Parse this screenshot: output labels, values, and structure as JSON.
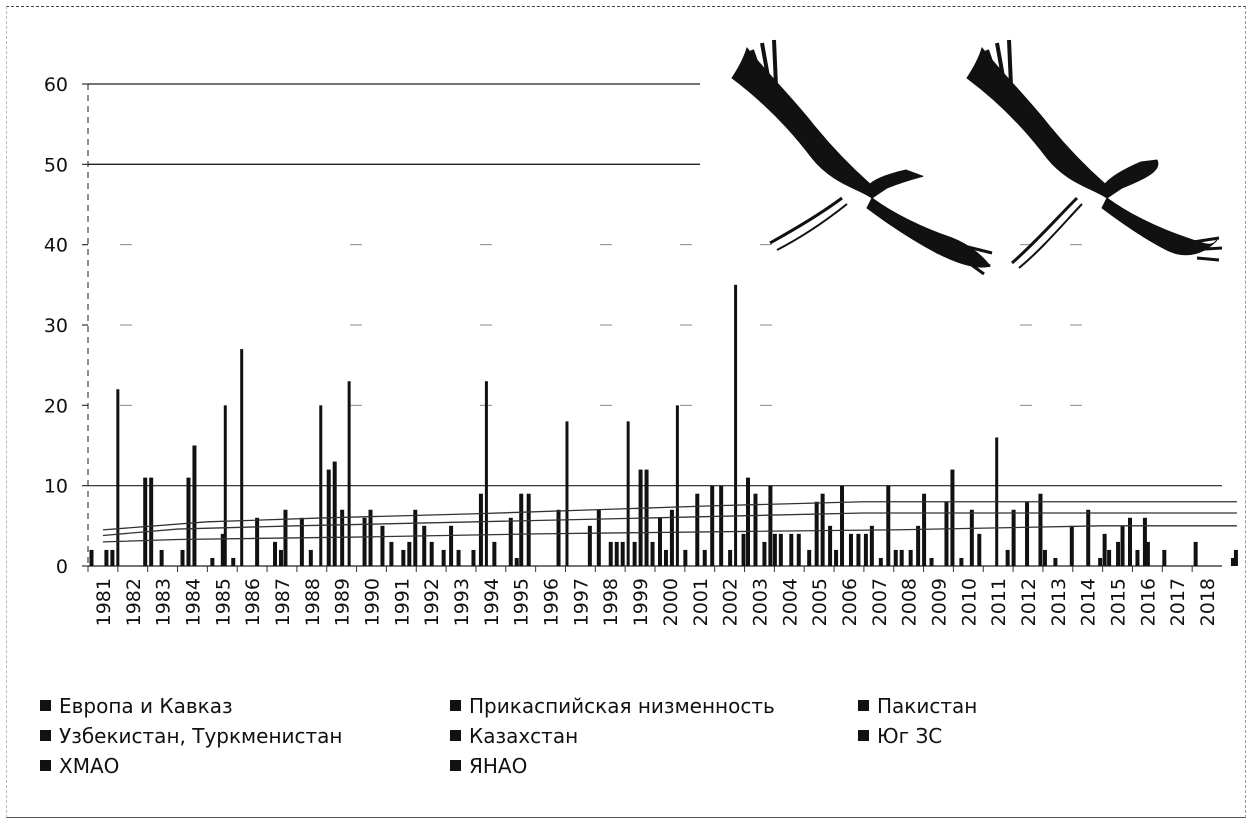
{
  "chart_data": {
    "type": "bar",
    "title": "",
    "xlabel": "",
    "ylabel": "",
    "ylim": [
      0,
      60
    ],
    "yticks": [
      0,
      10,
      20,
      30,
      40,
      50,
      60
    ],
    "grid": "horizontal",
    "legend_position": "bottom",
    "categories": [
      "1981",
      "1982",
      "1983",
      "1984",
      "1985",
      "1986",
      "1987",
      "1988",
      "1989",
      "1990",
      "1991",
      "1992",
      "1993",
      "1994",
      "1995",
      "1996",
      "1997",
      "1998",
      "1999",
      "2000",
      "2001",
      "2002",
      "2003",
      "2004",
      "2005",
      "2006",
      "2007",
      "2008",
      "2009",
      "2010",
      "2011",
      "2012",
      "2013",
      "2014",
      "2015",
      "2016",
      "2017",
      "2018"
    ],
    "series_names": [
      "Европа и Кавказ",
      "Прикаспийская низменность",
      "Пакистан",
      "Узбекистан, Туркменистан",
      "Казахстан",
      "Юг ЗС",
      "ХМАО",
      "ЯНАО"
    ],
    "observations": [
      {
        "x": 1981.05,
        "y": 2
      },
      {
        "x": 1981.55,
        "y": 2
      },
      {
        "x": 1981.75,
        "y": 2
      },
      {
        "x": 1981.95,
        "y": 22
      },
      {
        "x": 1982.85,
        "y": 11
      },
      {
        "x": 1983.05,
        "y": 11
      },
      {
        "x": 1983.4,
        "y": 2
      },
      {
        "x": 1984.1,
        "y": 2
      },
      {
        "x": 1984.3,
        "y": 11
      },
      {
        "x": 1984.5,
        "y": 15
      },
      {
        "x": 1985.1,
        "y": 1
      },
      {
        "x": 1985.45,
        "y": 4
      },
      {
        "x": 1985.55,
        "y": 20
      },
      {
        "x": 1985.8,
        "y": 1
      },
      {
        "x": 1986.1,
        "y": 27
      },
      {
        "x": 1986.6,
        "y": 6
      },
      {
        "x": 1987.2,
        "y": 3
      },
      {
        "x": 1987.4,
        "y": 2
      },
      {
        "x": 1987.55,
        "y": 7
      },
      {
        "x": 1988.1,
        "y": 6
      },
      {
        "x": 1988.4,
        "y": 2
      },
      {
        "x": 1988.75,
        "y": 20
      },
      {
        "x": 1989.0,
        "y": 12
      },
      {
        "x": 1989.2,
        "y": 13
      },
      {
        "x": 1989.45,
        "y": 7
      },
      {
        "x": 1989.7,
        "y": 23
      },
      {
        "x": 1990.2,
        "y": 6
      },
      {
        "x": 1990.4,
        "y": 7
      },
      {
        "x": 1990.8,
        "y": 5
      },
      {
        "x": 1991.1,
        "y": 3
      },
      {
        "x": 1991.5,
        "y": 2
      },
      {
        "x": 1991.7,
        "y": 3
      },
      {
        "x": 1991.9,
        "y": 7
      },
      {
        "x": 1992.2,
        "y": 5
      },
      {
        "x": 1992.45,
        "y": 3
      },
      {
        "x": 1992.85,
        "y": 2
      },
      {
        "x": 1993.1,
        "y": 5
      },
      {
        "x": 1993.35,
        "y": 2
      },
      {
        "x": 1993.85,
        "y": 2
      },
      {
        "x": 1994.1,
        "y": 9
      },
      {
        "x": 1994.3,
        "y": 23
      },
      {
        "x": 1994.55,
        "y": 3
      },
      {
        "x": 1995.1,
        "y": 6
      },
      {
        "x": 1995.3,
        "y": 1
      },
      {
        "x": 1995.45,
        "y": 9
      },
      {
        "x": 1995.7,
        "y": 9
      },
      {
        "x": 1996.7,
        "y": 7
      },
      {
        "x": 1997.0,
        "y": 18
      },
      {
        "x": 1997.75,
        "y": 5
      },
      {
        "x": 1998.05,
        "y": 7
      },
      {
        "x": 1998.45,
        "y": 3
      },
      {
        "x": 1998.65,
        "y": 3
      },
      {
        "x": 1998.85,
        "y": 3
      },
      {
        "x": 1999.05,
        "y": 18
      },
      {
        "x": 1999.25,
        "y": 3
      },
      {
        "x": 1999.45,
        "y": 12
      },
      {
        "x": 1999.65,
        "y": 12
      },
      {
        "x": 1999.85,
        "y": 3
      },
      {
        "x": 2000.1,
        "y": 6
      },
      {
        "x": 2000.3,
        "y": 2
      },
      {
        "x": 2000.5,
        "y": 7
      },
      {
        "x": 2000.7,
        "y": 20
      },
      {
        "x": 2000.95,
        "y": 2
      },
      {
        "x": 2001.35,
        "y": 9
      },
      {
        "x": 2001.6,
        "y": 2
      },
      {
        "x": 2001.85,
        "y": 10
      },
      {
        "x": 2002.15,
        "y": 10
      },
      {
        "x": 2002.45,
        "y": 2
      },
      {
        "x": 2002.65,
        "y": 35
      },
      {
        "x": 2002.9,
        "y": 4
      },
      {
        "x": 2003.05,
        "y": 11
      },
      {
        "x": 2003.3,
        "y": 9
      },
      {
        "x": 2003.6,
        "y": 3
      },
      {
        "x": 2003.8,
        "y": 10
      },
      {
        "x": 2003.95,
        "y": 4
      },
      {
        "x": 2004.15,
        "y": 4
      },
      {
        "x": 2004.5,
        "y": 4
      },
      {
        "x": 2004.75,
        "y": 4
      },
      {
        "x": 2005.1,
        "y": 2
      },
      {
        "x": 2005.35,
        "y": 8
      },
      {
        "x": 2005.55,
        "y": 9
      },
      {
        "x": 2005.8,
        "y": 5
      },
      {
        "x": 2006.0,
        "y": 2
      },
      {
        "x": 2006.2,
        "y": 10
      },
      {
        "x": 2006.5,
        "y": 4
      },
      {
        "x": 2006.75,
        "y": 4
      },
      {
        "x": 2007.0,
        "y": 4
      },
      {
        "x": 2007.2,
        "y": 5
      },
      {
        "x": 2007.5,
        "y": 1
      },
      {
        "x": 2007.75,
        "y": 10
      },
      {
        "x": 2008.0,
        "y": 2
      },
      {
        "x": 2008.2,
        "y": 2
      },
      {
        "x": 2008.5,
        "y": 2
      },
      {
        "x": 2008.75,
        "y": 5
      },
      {
        "x": 2008.95,
        "y": 9
      },
      {
        "x": 2009.2,
        "y": 1
      },
      {
        "x": 2009.7,
        "y": 8
      },
      {
        "x": 2009.9,
        "y": 12
      },
      {
        "x": 2010.2,
        "y": 1
      },
      {
        "x": 2010.55,
        "y": 7
      },
      {
        "x": 2010.8,
        "y": 4
      },
      {
        "x": 2011.4,
        "y": 16
      },
      {
        "x": 2011.75,
        "y": 2
      },
      {
        "x": 2011.95,
        "y": 7
      },
      {
        "x": 2012.4,
        "y": 8
      },
      {
        "x": 2012.85,
        "y": 9
      },
      {
        "x": 2013.0,
        "y": 2
      },
      {
        "x": 2013.35,
        "y": 1
      },
      {
        "x": 2013.9,
        "y": 5
      },
      {
        "x": 2014.45,
        "y": 7
      },
      {
        "x": 2014.85,
        "y": 1
      },
      {
        "x": 2015.0,
        "y": 4
      },
      {
        "x": 2015.15,
        "y": 2
      },
      {
        "x": 2015.45,
        "y": 3
      },
      {
        "x": 2015.6,
        "y": 5
      },
      {
        "x": 2015.85,
        "y": 6
      },
      {
        "x": 2016.1,
        "y": 2
      },
      {
        "x": 2016.35,
        "y": 6
      },
      {
        "x": 2016.45,
        "y": 3
      },
      {
        "x": 2017.0,
        "y": 2
      },
      {
        "x": 2018.05,
        "y": 3
      },
      {
        "x": 2019.3,
        "y": 1
      },
      {
        "x": 2019.4,
        "y": 2
      }
    ],
    "trend_lines": [
      {
        "x": [
          1981.5,
          1985,
          1989,
          1994,
          1998,
          2002,
          2007,
          2015,
          2019.5
        ],
        "y": [
          4.5,
          5.5,
          6,
          6.5,
          7,
          7.5,
          8,
          8,
          8
        ]
      },
      {
        "x": [
          1981.5,
          1984,
          1988,
          1994,
          2000,
          2007,
          2015,
          2019.5
        ],
        "y": [
          3.8,
          4.6,
          5,
          5.5,
          6,
          6.6,
          6.6,
          6.6
        ]
      },
      {
        "x": [
          1981.5,
          1984,
          1990,
          1996,
          2003,
          2008,
          2015,
          2019.5
        ],
        "y": [
          3,
          3.3,
          3.6,
          4,
          4.3,
          4.5,
          5,
          5
        ]
      }
    ]
  },
  "legend": {
    "items": [
      "Европа и Кавказ",
      "Прикаспийская низменность",
      "Пакистан",
      "Узбекистан, Туркменистан",
      "Казахстан",
      "Юг ЗС",
      "ХМАО",
      "ЯНАО"
    ]
  },
  "colors": {
    "bars": "#111111",
    "grid": "#222222",
    "trend": "#333333"
  }
}
